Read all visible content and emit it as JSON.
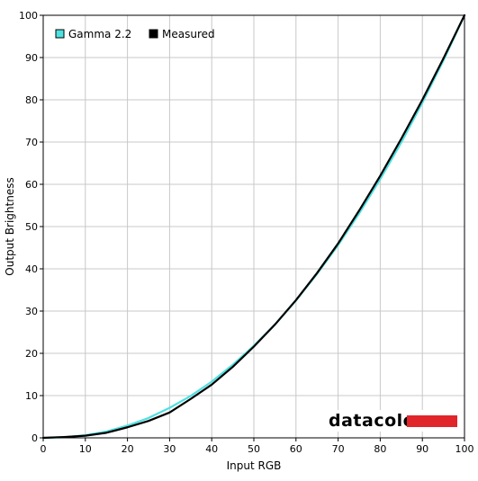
{
  "chart_data": {
    "type": "line",
    "title": "",
    "xlabel": "Input RGB",
    "ylabel": "Output Brightness",
    "xlim": [
      0,
      100
    ],
    "ylim": [
      0,
      100
    ],
    "x_ticks": [
      0,
      10,
      20,
      30,
      40,
      50,
      60,
      70,
      80,
      90,
      100
    ],
    "y_ticks": [
      0,
      10,
      20,
      30,
      40,
      50,
      60,
      70,
      80,
      90,
      100
    ],
    "grid": true,
    "legend_position": "top-left",
    "series": [
      {
        "name": "Gamma 2.2",
        "color": "#4fe0e0",
        "x": [
          0,
          5,
          10,
          15,
          20,
          25,
          30,
          35,
          40,
          45,
          50,
          55,
          60,
          65,
          70,
          75,
          80,
          85,
          90,
          95,
          100
        ],
        "y": [
          0,
          0.14,
          0.63,
          1.5,
          2.9,
          4.7,
          7.1,
          9.9,
          13.3,
          17.3,
          21.8,
          26.8,
          32.5,
          38.8,
          45.6,
          53.1,
          61.2,
          69.9,
          79.3,
          89.3,
          100
        ]
      },
      {
        "name": "Measured",
        "color": "#000000",
        "x": [
          0,
          5,
          10,
          15,
          20,
          25,
          30,
          35,
          40,
          45,
          50,
          55,
          60,
          65,
          70,
          75,
          80,
          85,
          90,
          95,
          100
        ],
        "y": [
          0,
          0.2,
          0.5,
          1.2,
          2.5,
          4.0,
          6.0,
          9.2,
          12.6,
          16.8,
          21.6,
          26.8,
          32.6,
          39.0,
          46.0,
          53.8,
          62.0,
          70.8,
          80.0,
          89.8,
          100
        ]
      }
    ]
  },
  "watermark": {
    "text": "datacolor",
    "bar_color": "#e0252b"
  }
}
